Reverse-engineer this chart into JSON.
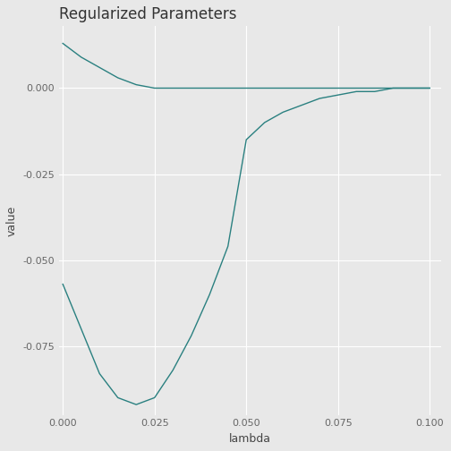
{
  "title": "Regularized Parameters",
  "xlabel": "lambda",
  "ylabel": "value",
  "xlim": [
    -0.001,
    0.103
  ],
  "ylim": [
    -0.095,
    0.018
  ],
  "background_color": "#E8E8E8",
  "grid_color": "#FFFFFF",
  "line_color": "#2A8080",
  "line_width": 1.0,
  "line1_x": [
    0.0,
    0.005,
    0.01,
    0.015,
    0.02,
    0.025,
    0.03,
    0.04,
    0.05,
    0.06,
    0.07,
    0.075,
    0.08,
    0.09,
    0.1
  ],
  "line1_y": [
    0.013,
    0.009,
    0.006,
    0.003,
    0.001,
    0.0,
    0.0,
    0.0,
    0.0,
    0.0,
    0.0,
    0.0,
    0.0,
    0.0,
    0.0
  ],
  "line2_x": [
    0.0,
    0.005,
    0.01,
    0.015,
    0.02,
    0.025,
    0.03,
    0.035,
    0.04,
    0.045,
    0.05,
    0.055,
    0.06,
    0.065,
    0.07,
    0.075,
    0.08,
    0.085,
    0.09,
    0.095,
    0.1
  ],
  "line2_y": [
    -0.057,
    -0.07,
    -0.083,
    -0.09,
    -0.092,
    -0.09,
    -0.082,
    -0.072,
    -0.06,
    -0.046,
    -0.015,
    -0.01,
    -0.007,
    -0.005,
    -0.003,
    -0.002,
    -0.001,
    -0.001,
    0.0,
    0.0,
    0.0
  ],
  "xticks": [
    0.0,
    0.025,
    0.05,
    0.075,
    0.1
  ],
  "yticks": [
    0.0,
    -0.025,
    -0.05,
    -0.075
  ],
  "tick_label_fontsize": 8,
  "axis_label_fontsize": 9,
  "title_fontsize": 12,
  "title_color": "#333333",
  "tick_color": "#666666",
  "axis_label_color": "#444444"
}
